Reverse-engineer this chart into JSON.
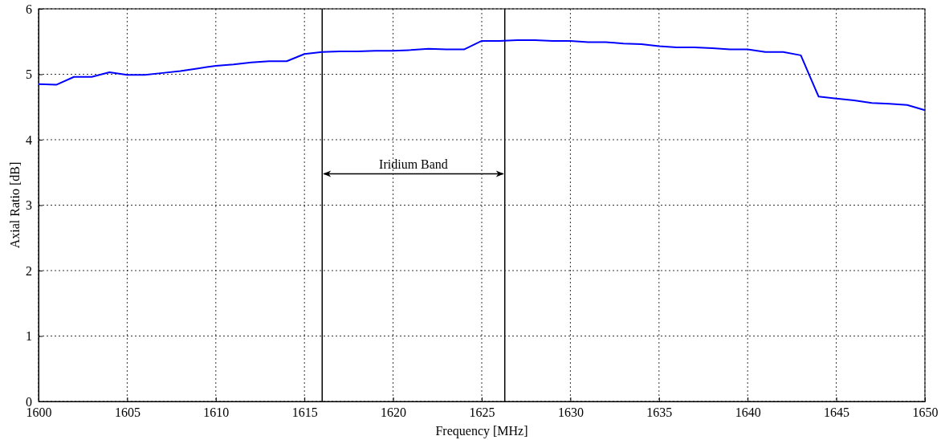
{
  "chart_data": {
    "type": "line",
    "xlabel": "Frequency [MHz]",
    "ylabel": "Axial Ratio [dB]",
    "x": [
      1600,
      1601,
      1602,
      1603,
      1604,
      1605,
      1606,
      1607,
      1608,
      1609,
      1610,
      1611,
      1612,
      1613,
      1614,
      1615,
      1616,
      1617,
      1618,
      1619,
      1620,
      1621,
      1622,
      1623,
      1624,
      1625,
      1626,
      1627,
      1628,
      1629,
      1630,
      1631,
      1632,
      1633,
      1634,
      1635,
      1636,
      1637,
      1638,
      1639,
      1640,
      1641,
      1642,
      1643,
      1644,
      1645,
      1646,
      1647,
      1648,
      1649,
      1650
    ],
    "series": [
      {
        "color": "#0000ff",
        "values": [
          4.85,
          4.84,
          4.96,
          4.96,
          5.03,
          4.99,
          4.99,
          5.02,
          5.05,
          5.09,
          5.13,
          5.15,
          5.18,
          5.2,
          5.2,
          5.31,
          5.34,
          5.35,
          5.35,
          5.36,
          5.36,
          5.37,
          5.39,
          5.38,
          5.38,
          5.51,
          5.51,
          5.52,
          5.52,
          5.51,
          5.51,
          5.49,
          5.49,
          5.47,
          5.46,
          5.43,
          5.41,
          5.41,
          5.4,
          5.38,
          5.38,
          5.34,
          5.34,
          5.29,
          4.66,
          4.63,
          4.6,
          4.56,
          4.55,
          4.53,
          4.45
        ]
      }
    ],
    "xlim": [
      1600,
      1650
    ],
    "xticks": [
      1600,
      1605,
      1610,
      1615,
      1620,
      1625,
      1630,
      1635,
      1640,
      1645,
      1650
    ],
    "ylim": [
      0,
      6
    ],
    "yticks": [
      0,
      1,
      2,
      3,
      4,
      5,
      6
    ],
    "grid": true,
    "line_style": "solid",
    "marker": "none",
    "ref_lines": [
      {
        "axis": "x",
        "value": 1616,
        "color": "#000000"
      },
      {
        "axis": "x",
        "value": 1626.3,
        "color": "#000000"
      }
    ],
    "annotations": [
      "Iridium Band"
    ]
  }
}
